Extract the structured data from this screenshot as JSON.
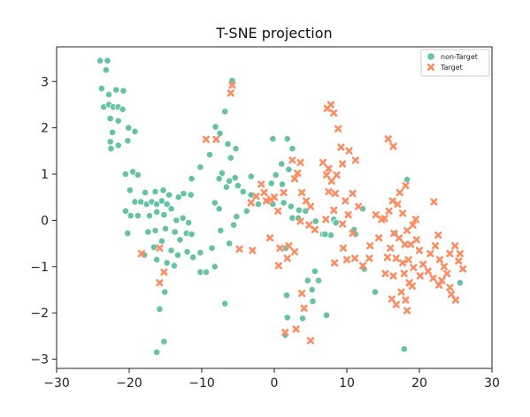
{
  "chart_data": {
    "type": "scatter",
    "title": "T-SNE projection",
    "xlabel": "",
    "ylabel": "",
    "xlim": [
      -30,
      30
    ],
    "ylim": [
      -3.2,
      3.75
    ],
    "xticks": [
      -30,
      -20,
      -10,
      0,
      10,
      20,
      30
    ],
    "yticks": [
      -3,
      -2,
      -1,
      0,
      1,
      2,
      3
    ],
    "xtick_labels": [
      "−30",
      "−20",
      "−10",
      "0",
      "10",
      "20",
      "30"
    ],
    "ytick_labels": [
      "−3",
      "−2",
      "−1",
      "0",
      "1",
      "2",
      "3"
    ],
    "grid": false,
    "legend_position": "top-right",
    "series": [
      {
        "name": "non-Target",
        "marker": "circle",
        "color": "#66c2a5",
        "points": [
          [
            -24,
            3.45
          ],
          [
            -23,
            3.45
          ],
          [
            -23.2,
            3.25
          ],
          [
            -23.8,
            2.85
          ],
          [
            -22.8,
            2.72
          ],
          [
            -21.8,
            2.82
          ],
          [
            -20.8,
            2.8
          ],
          [
            -23.5,
            2.45
          ],
          [
            -22.8,
            2.5
          ],
          [
            -22.2,
            2.45
          ],
          [
            -21.5,
            2.45
          ],
          [
            -20.9,
            2.4
          ],
          [
            -22.6,
            2.2
          ],
          [
            -21.5,
            2.15
          ],
          [
            -20.1,
            2.0
          ],
          [
            -19.2,
            1.92
          ],
          [
            -22.3,
            1.9
          ],
          [
            -20.2,
            1.72
          ],
          [
            -22.6,
            1.7
          ],
          [
            -21.5,
            1.62
          ],
          [
            -22.5,
            1.55
          ],
          [
            -19.5,
            1.05
          ],
          [
            -20.5,
            1.0
          ],
          [
            -18.8,
            0.98
          ],
          [
            -19.9,
            0.65
          ],
          [
            -19.2,
            0.4
          ],
          [
            -18.4,
            0.4
          ],
          [
            -17.6,
            0.35
          ],
          [
            -16.9,
            0.4
          ],
          [
            -16.2,
            0.35
          ],
          [
            -15.5,
            0.42
          ],
          [
            -14.8,
            0.35
          ],
          [
            -17.8,
            0.6
          ],
          [
            -16.4,
            0.62
          ],
          [
            -15.3,
            0.65
          ],
          [
            -14.5,
            0.55
          ],
          [
            -13.2,
            0.5
          ],
          [
            -12.5,
            0.58
          ],
          [
            -11.5,
            0.55
          ],
          [
            -10.2,
            1.15
          ],
          [
            -11.4,
            0.9
          ],
          [
            -18.8,
            0.1
          ],
          [
            -20.5,
            0.2
          ],
          [
            -19.8,
            0.1
          ],
          [
            -17.2,
            0.1
          ],
          [
            -16.2,
            0.18
          ],
          [
            -15.2,
            0.12
          ],
          [
            -14.2,
            0.25
          ],
          [
            -13.5,
            0.0
          ],
          [
            -12.6,
            0.05
          ],
          [
            -11.8,
            -0.05
          ],
          [
            -20.2,
            -0.28
          ],
          [
            -17.4,
            -0.25
          ],
          [
            -16.4,
            -0.22
          ],
          [
            -15.0,
            -0.18
          ],
          [
            -13.7,
            -0.25
          ],
          [
            -12.1,
            -0.28
          ],
          [
            -11.4,
            -0.3
          ],
          [
            -13.0,
            -0.42
          ],
          [
            -14.2,
            -0.65
          ],
          [
            -15.5,
            -0.45
          ],
          [
            -16.6,
            -0.58
          ],
          [
            -12.0,
            -0.68
          ],
          [
            -13.3,
            -0.75
          ],
          [
            -11.2,
            -0.8
          ],
          [
            -10.2,
            -0.7
          ],
          [
            -17.9,
            -0.75
          ],
          [
            -16.2,
            -0.85
          ],
          [
            -14.8,
            -0.92
          ],
          [
            -13.8,
            -0.98
          ],
          [
            -10.2,
            -1.12
          ],
          [
            -9.4,
            -1.12
          ],
          [
            -15.1,
            -1.55
          ],
          [
            -15.8,
            -1.92
          ],
          [
            -16.2,
            -2.85
          ],
          [
            -15.2,
            -2.62
          ],
          [
            -8.2,
            -1.0
          ],
          [
            -6.8,
            -1.8
          ],
          [
            -8.6,
            -0.6
          ],
          [
            -7.4,
            -0.22
          ],
          [
            -6.2,
            -0.5
          ],
          [
            -5.8,
            3.02
          ],
          [
            -6.8,
            2.35
          ],
          [
            -8.1,
            2.02
          ],
          [
            -7.5,
            1.88
          ],
          [
            -6.4,
            1.65
          ],
          [
            -5.3,
            1.55
          ],
          [
            -6.0,
            1.35
          ],
          [
            -8.9,
            1.42
          ],
          [
            -7.2,
            1.02
          ],
          [
            -7.6,
            0.9
          ],
          [
            -6.6,
            0.72
          ],
          [
            -5.4,
            0.92
          ],
          [
            -6.2,
            0.85
          ],
          [
            -5.0,
            0.75
          ],
          [
            -3.2,
            0.95
          ],
          [
            -4.3,
            0.62
          ],
          [
            -3.2,
            0.55
          ],
          [
            -2.2,
            0.35
          ],
          [
            -3.8,
            0.2
          ],
          [
            -5.2,
            0.08
          ],
          [
            -5.6,
            -0.1
          ],
          [
            -8.2,
            0.38
          ],
          [
            -7.6,
            0.25
          ],
          [
            -0.2,
            1.76
          ],
          [
            1.8,
            1.76
          ],
          [
            2.5,
            1.55
          ],
          [
            1.0,
            1.22
          ],
          [
            2.0,
            1.1
          ],
          [
            0.2,
            0.98
          ],
          [
            1.1,
            0.78
          ],
          [
            -0.4,
            0.8
          ],
          [
            1.3,
            0.38
          ],
          [
            -0.2,
            0.35
          ],
          [
            2.3,
            0.3
          ],
          [
            3.4,
            0.22
          ],
          [
            2.5,
            0.05
          ],
          [
            4.3,
            0.2
          ],
          [
            3.3,
            0.05
          ],
          [
            5.7,
            -0.02
          ],
          [
            8.2,
            0.02
          ],
          [
            8.5,
            -0.05
          ],
          [
            7.8,
            -0.32
          ],
          [
            6.7,
            -0.3
          ],
          [
            12.2,
            0.25
          ],
          [
            11.0,
            -0.2
          ],
          [
            1.6,
            -0.6
          ],
          [
            5.6,
            -1.1
          ],
          [
            5.2,
            -1.5
          ],
          [
            6.1,
            -1.3
          ],
          [
            4.6,
            -1.3
          ],
          [
            5.3,
            -1.75
          ],
          [
            7.2,
            -2.05
          ],
          [
            3.9,
            -2.12
          ],
          [
            1.7,
            -1.62
          ],
          [
            1.8,
            -2.1
          ],
          [
            1.5,
            -2.48
          ],
          [
            18.3,
            0.88
          ],
          [
            16.6,
            -0.28
          ],
          [
            11.2,
            -0.3
          ],
          [
            12.4,
            -1.05
          ],
          [
            13.9,
            -1.55
          ],
          [
            17.9,
            -2.78
          ],
          [
            25.6,
            -1.35
          ],
          [
            7.0,
            -0.3
          ]
        ]
      },
      {
        "name": "Target",
        "marker": "x",
        "color": "#fc8d62",
        "points": [
          [
            -5.8,
            2.92
          ],
          [
            -6.0,
            2.75
          ],
          [
            -8.0,
            1.75
          ],
          [
            -9.4,
            1.75
          ],
          [
            -3.2,
            0.38
          ],
          [
            -2.5,
            0.52
          ],
          [
            -1.8,
            0.78
          ],
          [
            -1.4,
            0.6
          ],
          [
            -1.1,
            0.42
          ],
          [
            -0.5,
            0.45
          ],
          [
            0.0,
            0.5
          ],
          [
            0.5,
            0.2
          ],
          [
            1.3,
            0.6
          ],
          [
            -4.8,
            -0.62
          ],
          [
            -3.0,
            -0.65
          ],
          [
            -0.6,
            -0.38
          ],
          [
            0.8,
            -0.6
          ],
          [
            2.0,
            -0.55
          ],
          [
            2.8,
            -0.68
          ],
          [
            1.8,
            -0.82
          ],
          [
            0.6,
            -0.98
          ],
          [
            3.6,
            -0.02
          ],
          [
            2.5,
            1.3
          ],
          [
            2.8,
            0.9
          ],
          [
            3.6,
            1.25
          ],
          [
            3.2,
            1.02
          ],
          [
            3.8,
            0.6
          ],
          [
            4.4,
            0.42
          ],
          [
            5.0,
            0.3
          ],
          [
            4.8,
            -0.1
          ],
          [
            5.6,
            -0.2
          ],
          [
            6.7,
            1.25
          ],
          [
            7.5,
            1.12
          ],
          [
            7.2,
            0.98
          ],
          [
            7.9,
            0.85
          ],
          [
            8.6,
            0.98
          ],
          [
            7.5,
            0.62
          ],
          [
            8.4,
            0.58
          ],
          [
            8.2,
            0.22
          ],
          [
            7.1,
            0.02
          ],
          [
            7.3,
            2.42
          ],
          [
            7.8,
            2.5
          ],
          [
            8.2,
            2.32
          ],
          [
            8.8,
            1.98
          ],
          [
            9.2,
            1.58
          ],
          [
            10.3,
            1.5
          ],
          [
            9.4,
            1.22
          ],
          [
            11.2,
            1.3
          ],
          [
            10.8,
            0.58
          ],
          [
            11.6,
            0.3
          ],
          [
            9.8,
            0.42
          ],
          [
            10.2,
            0.12
          ],
          [
            9.4,
            -0.08
          ],
          [
            10.8,
            -0.28
          ],
          [
            9.5,
            -0.6
          ],
          [
            10.0,
            -0.85
          ],
          [
            8.3,
            -0.92
          ],
          [
            11.1,
            -0.82
          ],
          [
            12.2,
            -0.98
          ],
          [
            13.1,
            -0.82
          ],
          [
            13.2,
            -0.55
          ],
          [
            14.4,
            -0.38
          ],
          [
            14.8,
            0.02
          ],
          [
            14.0,
            0.12
          ],
          [
            15.2,
            0.04
          ],
          [
            15.8,
            0.2
          ],
          [
            16.3,
            0.42
          ],
          [
            15.7,
            1.76
          ],
          [
            16.4,
            1.6
          ],
          [
            17.3,
            0.6
          ],
          [
            18.1,
            0.75
          ],
          [
            17.0,
            0.35
          ],
          [
            17.7,
            0.15
          ],
          [
            16.0,
            -0.6
          ],
          [
            16.5,
            -0.28
          ],
          [
            17.2,
            -0.38
          ],
          [
            18.3,
            -0.22
          ],
          [
            19.1,
            -0.1
          ],
          [
            19.5,
            0.02
          ],
          [
            18.0,
            -0.52
          ],
          [
            18.8,
            -0.52
          ],
          [
            19.6,
            -0.42
          ],
          [
            16.8,
            -0.82
          ],
          [
            17.7,
            -0.92
          ],
          [
            18.5,
            -0.85
          ],
          [
            20.0,
            -0.65
          ],
          [
            20.5,
            -0.95
          ],
          [
            19.2,
            -1.02
          ],
          [
            17.9,
            -1.15
          ],
          [
            16.4,
            -1.2
          ],
          [
            15.3,
            -1.15
          ],
          [
            15.6,
            -0.8
          ],
          [
            16.2,
            -1.7
          ],
          [
            16.8,
            -1.82
          ],
          [
            17.5,
            -1.55
          ],
          [
            18.1,
            -1.72
          ],
          [
            19.0,
            -1.42
          ],
          [
            18.3,
            -1.95
          ],
          [
            18.6,
            -1.35
          ],
          [
            20.1,
            -1.2
          ],
          [
            21.2,
            -1.1
          ],
          [
            21.5,
            -0.72
          ],
          [
            22.2,
            -0.55
          ],
          [
            22.6,
            -0.32
          ],
          [
            22.0,
            0.4
          ],
          [
            22.8,
            -0.85
          ],
          [
            23.4,
            -1.0
          ],
          [
            23.8,
            -1.15
          ],
          [
            23.1,
            -1.3
          ],
          [
            24.2,
            -1.45
          ],
          [
            24.4,
            -1.6
          ],
          [
            25.0,
            -1.72
          ],
          [
            24.2,
            -0.72
          ],
          [
            24.9,
            -0.55
          ],
          [
            25.6,
            -0.72
          ],
          [
            26.0,
            -1.05
          ],
          [
            25.4,
            -0.88
          ],
          [
            21.9,
            -1.25
          ],
          [
            22.7,
            -1.4
          ],
          [
            -15.8,
            -1.35
          ],
          [
            -15.2,
            -1.12
          ],
          [
            -18.3,
            -0.72
          ],
          [
            -15.8,
            -0.6
          ],
          [
            5.0,
            -2.6
          ],
          [
            3.0,
            -2.35
          ],
          [
            1.5,
            -2.42
          ],
          [
            3.8,
            -1.58
          ],
          [
            4.1,
            -1.9
          ]
        ]
      }
    ]
  }
}
